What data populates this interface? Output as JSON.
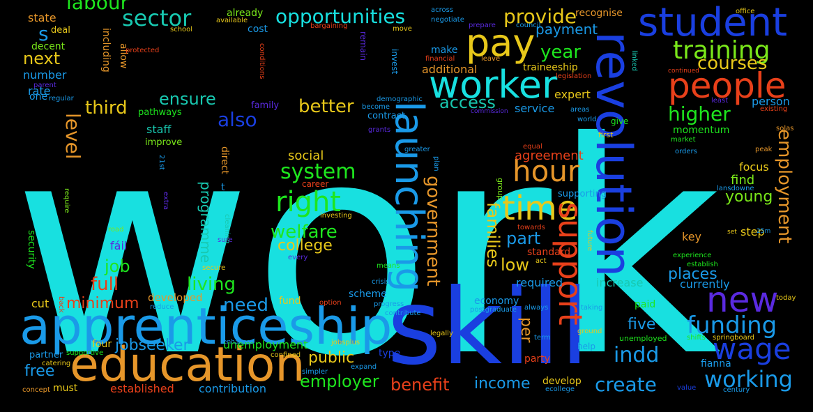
{
  "background": "#000000",
  "palette": {
    "cyan": "#18e0e0",
    "green": "#1ee61e",
    "blue": "#1a3fe0",
    "yellow": "#e8c81a",
    "orange": "#e6962a",
    "red": "#e8401a",
    "skyblue": "#1a9ae8",
    "teal": "#18c8b0",
    "lime": "#7ae81a",
    "purple": "#5a2ae0"
  },
  "words": [
    {
      "text": "work",
      "color": "#18e0e0",
      "weight": 100
    },
    {
      "text": "labour",
      "color": "#1ee61e",
      "weight": 46
    },
    {
      "text": "skill",
      "color": "#1a3fe0",
      "weight": 44
    },
    {
      "text": "apprenticeship",
      "color": "#1a9ae8",
      "weight": 16
    },
    {
      "text": "education",
      "color": "#e6962a",
      "weight": 16
    },
    {
      "text": "revolution",
      "color": "#1a3fe0",
      "weight": 14
    },
    {
      "text": "student",
      "color": "#1a3fe0",
      "weight": 13
    },
    {
      "text": "launching",
      "color": "#1a9ae8",
      "weight": 11
    },
    {
      "text": "worker",
      "color": "#18e0e0",
      "weight": 12
    },
    {
      "text": "pay",
      "color": "#e8c81a",
      "weight": 12
    },
    {
      "text": "people",
      "color": "#e8401a",
      "weight": 12
    },
    {
      "text": "time",
      "color": "#e8c81a",
      "weight": 12
    },
    {
      "text": "new",
      "color": "#5a2ae0",
      "weight": 12
    },
    {
      "text": "wage",
      "color": "#1a3fe0",
      "weight": 10
    },
    {
      "text": "support",
      "color": "#e8401a",
      "weight": 10
    },
    {
      "text": "hour",
      "color": "#e6962a",
      "weight": 10
    },
    {
      "text": "right",
      "color": "#1ee61e",
      "weight": 9
    },
    {
      "text": "training",
      "color": "#7ae81a",
      "weight": 8
    },
    {
      "text": "sector",
      "color": "#18c8b0",
      "weight": 7
    },
    {
      "text": "opportunities",
      "color": "#18e0e0",
      "weight": 7
    },
    {
      "text": "provide",
      "color": "#e8c81a",
      "weight": 7
    },
    {
      "text": "courses",
      "color": "#e8c81a",
      "weight": 6
    },
    {
      "text": "funding",
      "color": "#1a9ae8",
      "weight": 7
    },
    {
      "text": "working",
      "color": "#1a9ae8",
      "weight": 7
    },
    {
      "text": "employment",
      "color": "#e6962a",
      "weight": 6
    },
    {
      "text": "government",
      "color": "#e6962a",
      "weight": 6
    },
    {
      "text": "families",
      "color": "#e8c81a",
      "weight": 6
    },
    {
      "text": "system",
      "color": "#1ee61e",
      "weight": 6
    },
    {
      "text": "welfare",
      "color": "#1ee61e",
      "weight": 6
    },
    {
      "text": "indd",
      "color": "#1a9ae8",
      "weight": 7
    },
    {
      "text": "create",
      "color": "#1a9ae8",
      "weight": 6
    },
    {
      "text": "employer",
      "color": "#1ee61e",
      "weight": 5
    },
    {
      "text": "benefit",
      "color": "#e8401a",
      "weight": 5
    },
    {
      "text": "income",
      "color": "#1a9ae8",
      "weight": 5
    },
    {
      "text": "ensure",
      "color": "#18c8b0",
      "weight": 5
    },
    {
      "text": "higher",
      "color": "#1ee61e",
      "weight": 5
    },
    {
      "text": "year",
      "color": "#1ee61e",
      "weight": 5
    },
    {
      "text": "payment",
      "color": "#1a9ae8",
      "weight": 4
    },
    {
      "text": "access",
      "color": "#18c8b0",
      "weight": 5
    },
    {
      "text": "better",
      "color": "#e8c81a",
      "weight": 5
    },
    {
      "text": "third",
      "color": "#e8c81a",
      "weight": 5
    },
    {
      "text": "level",
      "color": "#e6962a",
      "weight": 5
    },
    {
      "text": "also",
      "color": "#1a3fe0",
      "weight": 5
    },
    {
      "text": "job",
      "color": "#1ee61e",
      "weight": 4
    },
    {
      "text": "full",
      "color": "#e8401a",
      "weight": 5
    },
    {
      "text": "living",
      "color": "#1ee61e",
      "weight": 5
    },
    {
      "text": "need",
      "color": "#1a9ae8",
      "weight": 5
    },
    {
      "text": "college",
      "color": "#e8c81a",
      "weight": 4
    },
    {
      "text": "minimum",
      "color": "#e8401a",
      "weight": 4
    },
    {
      "text": "jobseeker",
      "color": "#1a9ae8",
      "weight": 4
    },
    {
      "text": "public",
      "color": "#e8c81a",
      "weight": 4
    },
    {
      "text": "programme",
      "color": "#18c8b0",
      "weight": 4
    },
    {
      "text": "part",
      "color": "#1a9ae8",
      "weight": 4
    },
    {
      "text": "low",
      "color": "#e8c81a",
      "weight": 4
    },
    {
      "text": "places",
      "color": "#1a9ae8",
      "weight": 4
    },
    {
      "text": "young",
      "color": "#7ae81a",
      "weight": 4
    },
    {
      "text": "five",
      "color": "#1a9ae8",
      "weight": 4
    },
    {
      "text": "per",
      "color": "#e6962a",
      "weight": 4
    },
    {
      "text": "next",
      "color": "#e8c81a",
      "weight": 4
    },
    {
      "text": "s",
      "color": "#1a9ae8",
      "weight": 5
    },
    {
      "text": "free",
      "color": "#1a9ae8",
      "weight": 4
    },
    {
      "text": "social",
      "color": "#e8c81a",
      "weight": 3
    },
    {
      "text": "service",
      "color": "#1a9ae8",
      "weight": 3
    },
    {
      "text": "agreement",
      "color": "#e8401a",
      "weight": 3
    },
    {
      "text": "find",
      "color": "#7ae81a",
      "weight": 3
    },
    {
      "text": "focus",
      "color": "#e8c81a",
      "weight": 3
    },
    {
      "text": "person",
      "color": "#1a9ae8",
      "weight": 3
    },
    {
      "text": "key",
      "color": "#e6962a",
      "weight": 3
    },
    {
      "text": "step",
      "color": "#e8c81a",
      "weight": 3
    },
    {
      "text": "increase",
      "color": "#18c8b0",
      "weight": 3
    },
    {
      "text": "required",
      "color": "#1a9ae8",
      "weight": 3
    },
    {
      "text": "currently",
      "color": "#1a9ae8",
      "weight": 3
    },
    {
      "text": "economy",
      "color": "#1a9ae8",
      "weight": 3
    },
    {
      "text": "scheme",
      "color": "#1a9ae8",
      "weight": 3
    },
    {
      "text": "fund",
      "color": "#e8c81a",
      "weight": 3
    },
    {
      "text": "cut",
      "color": "#e8c81a",
      "weight": 3
    },
    {
      "text": "developed",
      "color": "#e6962a",
      "weight": 3
    },
    {
      "text": "unemployment",
      "color": "#1ee61e",
      "weight": 3
    },
    {
      "text": "contribution",
      "color": "#1a9ae8",
      "weight": 3
    },
    {
      "text": "established",
      "color": "#e8401a",
      "weight": 3
    },
    {
      "text": "develop",
      "color": "#e8c81a",
      "weight": 3
    },
    {
      "text": "standard",
      "color": "#e8401a",
      "weight": 3
    },
    {
      "text": "additional",
      "color": "#e6962a",
      "weight": 3
    },
    {
      "text": "traineeship",
      "color": "#e8c81a",
      "weight": 3
    },
    {
      "text": "make",
      "color": "#1a9ae8",
      "weight": 3
    },
    {
      "text": "expert",
      "color": "#e8c81a",
      "weight": 3
    },
    {
      "text": "staff",
      "color": "#18c8b0",
      "weight": 3
    },
    {
      "text": "rate",
      "color": "#1a9ae8",
      "weight": 3
    },
    {
      "text": "number",
      "color": "#1a9ae8",
      "weight": 3
    },
    {
      "text": "decent",
      "color": "#7ae81a",
      "weight": 3
    },
    {
      "text": "state",
      "color": "#e6962a",
      "weight": 3
    },
    {
      "text": "recognise",
      "color": "#e6962a",
      "weight": 3
    },
    {
      "text": "cost",
      "color": "#1a9ae8",
      "weight": 3
    },
    {
      "text": "already",
      "color": "#7ae81a",
      "weight": 3
    },
    {
      "text": "supporting",
      "color": "#1a9ae8",
      "weight": 2
    },
    {
      "text": "momentum",
      "color": "#1ee61e",
      "weight": 2
    },
    {
      "text": "paid",
      "color": "#1ee61e",
      "weight": 2
    },
    {
      "text": "contract",
      "color": "#1a9ae8",
      "weight": 2
    },
    {
      "text": "family",
      "color": "#5a2ae0",
      "weight": 2
    },
    {
      "text": "pathways",
      "color": "#1ee61e",
      "weight": 2
    },
    {
      "text": "improve",
      "color": "#7ae81a",
      "weight": 2
    },
    {
      "text": "four",
      "color": "#e8c81a",
      "weight": 2
    },
    {
      "text": "must",
      "color": "#e8c81a",
      "weight": 2
    },
    {
      "text": "partner",
      "color": "#1a9ae8",
      "weight": 2
    },
    {
      "text": "security",
      "color": "#1ee61e",
      "weight": 2
    },
    {
      "text": "career",
      "color": "#e8401a",
      "weight": 2
    },
    {
      "text": "fáil",
      "color": "#5a2ae0",
      "weight": 2
    },
    {
      "text": "type",
      "color": "#1a3fe0",
      "weight": 2
    },
    {
      "text": "direct",
      "color": "#e6962a",
      "weight": 2
    },
    {
      "text": "t",
      "color": "#1a9ae8",
      "weight": 2
    },
    {
      "text": "one",
      "color": "#1a9ae8",
      "weight": 2
    },
    {
      "text": "deal",
      "color": "#e8c81a",
      "weight": 2
    },
    {
      "text": "allow",
      "color": "#e6962a",
      "weight": 2
    },
    {
      "text": "including",
      "color": "#e6962a",
      "weight": 2
    },
    {
      "text": "fianna",
      "color": "#1a9ae8",
      "weight": 2
    },
    {
      "text": "party",
      "color": "#e8401a",
      "weight": 2
    },
    {
      "text": "give",
      "color": "#1ee61e",
      "weight": 2
    },
    {
      "text": "establish",
      "color": "#1ee61e",
      "weight": 1
    },
    {
      "text": "experience",
      "color": "#1ee61e",
      "weight": 1
    },
    {
      "text": "market",
      "color": "#1ee61e",
      "weight": 1
    },
    {
      "text": "orders",
      "color": "#1a9ae8",
      "weight": 1
    },
    {
      "text": "first",
      "color": "#e8c81a",
      "weight": 1
    },
    {
      "text": "help",
      "color": "#1a9ae8",
      "weight": 1
    },
    {
      "text": "unemployed",
      "color": "#1ee61e",
      "weight": 1
    },
    {
      "text": "ground",
      "color": "#e8c81a",
      "weight": 1
    },
    {
      "text": "towards",
      "color": "#e8401a",
      "weight": 1
    },
    {
      "text": "act",
      "color": "#e8c81a",
      "weight": 1
    },
    {
      "text": "term",
      "color": "#1a9ae8",
      "weight": 1
    },
    {
      "text": "postgraduate",
      "color": "#1a9ae8",
      "weight": 1
    },
    {
      "text": "always",
      "color": "#1a9ae8",
      "weight": 1
    },
    {
      "text": "legally",
      "color": "#e8c81a",
      "weight": 1
    },
    {
      "text": "progress",
      "color": "#1a9ae8",
      "weight": 1
    },
    {
      "text": "contribute",
      "color": "#1a9ae8",
      "weight": 1
    },
    {
      "text": "option",
      "color": "#e8401a",
      "weight": 1
    },
    {
      "text": "crisis",
      "color": "#1a9ae8",
      "weight": 1
    },
    {
      "text": "means",
      "color": "#1ee61e",
      "weight": 1
    },
    {
      "text": "investing",
      "color": "#e8c81a",
      "weight": 1
    },
    {
      "text": "every",
      "color": "#5a2ae0",
      "weight": 1
    },
    {
      "text": "secure",
      "color": "#e8c81a",
      "weight": 1
    },
    {
      "text": "sure",
      "color": "#5a2ae0",
      "weight": 1
    },
    {
      "text": "cleaning",
      "color": "#18c8b0",
      "weight": 1
    },
    {
      "text": "road",
      "color": "#7ae81a",
      "weight": 1
    },
    {
      "text": "extra",
      "color": "#5a2ae0",
      "weight": 1
    },
    {
      "text": "require",
      "color": "#7ae81a",
      "weight": 1
    },
    {
      "text": "21st",
      "color": "#1a9ae8",
      "weight": 1
    },
    {
      "text": "plan",
      "color": "#1a9ae8",
      "weight": 1
    },
    {
      "text": "greater",
      "color": "#1a9ae8",
      "weight": 1
    },
    {
      "text": "grants",
      "color": "#5a2ae0",
      "weight": 1
    },
    {
      "text": "become",
      "color": "#1a9ae8",
      "weight": 1
    },
    {
      "text": "demographic",
      "color": "#1a9ae8",
      "weight": 1
    },
    {
      "text": "invest",
      "color": "#1a9ae8",
      "weight": 1
    },
    {
      "text": "remain",
      "color": "#5a2ae0",
      "weight": 1
    },
    {
      "text": "bargaining",
      "color": "#e8401a",
      "weight": 1
    },
    {
      "text": "available",
      "color": "#e8c81a",
      "weight": 1
    },
    {
      "text": "school",
      "color": "#e8c81a",
      "weight": 1
    },
    {
      "text": "protected",
      "color": "#e8401a",
      "weight": 1
    },
    {
      "text": "conditions",
      "color": "#e8401a",
      "weight": 1
    },
    {
      "text": "move",
      "color": "#e8c81a",
      "weight": 1
    },
    {
      "text": "across",
      "color": "#1a9ae8",
      "weight": 1
    },
    {
      "text": "negotiate",
      "color": "#1a9ae8",
      "weight": 1
    },
    {
      "text": "prepare",
      "color": "#5a2ae0",
      "weight": 1
    },
    {
      "text": "financial",
      "color": "#e8401a",
      "weight": 1
    },
    {
      "text": "leave",
      "color": "#e6962a",
      "weight": 1
    },
    {
      "text": "council",
      "color": "#1a9ae8",
      "weight": 1
    },
    {
      "text": "legislation",
      "color": "#e8401a",
      "weight": 1
    },
    {
      "text": "commission",
      "color": "#5a2ae0",
      "weight": 1
    },
    {
      "text": "areas",
      "color": "#1a9ae8",
      "weight": 1
    },
    {
      "text": "world",
      "color": "#1a9ae8",
      "weight": 1
    },
    {
      "text": "linked",
      "color": "#18c8b0",
      "weight": 1
    },
    {
      "text": "continued",
      "color": "#e8401a",
      "weight": 1
    },
    {
      "text": "office",
      "color": "#e8c81a",
      "weight": 1
    },
    {
      "text": "least",
      "color": "#5a2ae0",
      "weight": 1
    },
    {
      "text": "existing",
      "color": "#e8401a",
      "weight": 1
    },
    {
      "text": "solas",
      "color": "#e6962a",
      "weight": 1
    },
    {
      "text": "peak",
      "color": "#e6962a",
      "weight": 1
    },
    {
      "text": "equal",
      "color": "#e8401a",
      "weight": 1
    },
    {
      "text": "lansdowne",
      "color": "#1a9ae8",
      "weight": 1
    },
    {
      "text": "set",
      "color": "#e8c81a",
      "weight": 1
    },
    {
      "text": "25m",
      "color": "#1a9ae8",
      "weight": 1
    },
    {
      "text": "future",
      "color": "#e8c81a",
      "weight": 1
    },
    {
      "text": "group",
      "color": "#7ae81a",
      "weight": 1
    },
    {
      "text": "taking",
      "color": "#1a9ae8",
      "weight": 1
    },
    {
      "text": "shifts",
      "color": "#1ee61e",
      "weight": 1
    },
    {
      "text": "springboard",
      "color": "#e8c81a",
      "weight": 1
    },
    {
      "text": "jobsplus",
      "color": "#e8c81a",
      "weight": 1
    },
    {
      "text": "expand",
      "color": "#1a9ae8",
      "weight": 1
    },
    {
      "text": "simpler",
      "color": "#1a9ae8",
      "weight": 1
    },
    {
      "text": "confined",
      "color": "#e8c81a",
      "weight": 1
    },
    {
      "text": "enhanced",
      "color": "#1a9ae8",
      "weight": 1
    },
    {
      "text": "supportive",
      "color": "#1ee61e",
      "weight": 1
    },
    {
      "text": "catering",
      "color": "#e8c81a",
      "weight": 1
    },
    {
      "text": "concept",
      "color": "#e6962a",
      "weight": 1
    },
    {
      "text": "back",
      "color": "#e8401a",
      "weight": 1
    },
    {
      "text": "reduce",
      "color": "#1a9ae8",
      "weight": 1
    },
    {
      "text": "value",
      "color": "#1a3fe0",
      "weight": 1
    },
    {
      "text": "ecollege",
      "color": "#1a9ae8",
      "weight": 1
    },
    {
      "text": "century",
      "color": "#1a9ae8",
      "weight": 1
    },
    {
      "text": "today",
      "color": "#e8c81a",
      "weight": 1
    },
    {
      "text": "regular",
      "color": "#1a9ae8",
      "weight": 1
    },
    {
      "text": "parent",
      "color": "#5a2ae0",
      "weight": 1
    }
  ]
}
